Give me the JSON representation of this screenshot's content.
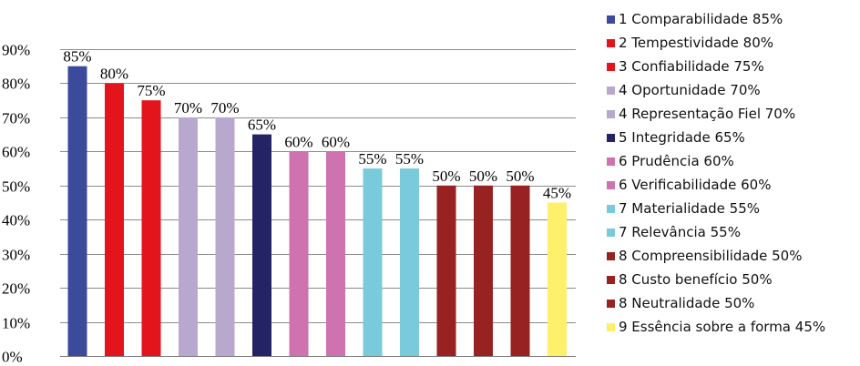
{
  "chart_data": {
    "type": "bar",
    "title": "",
    "xlabel": "",
    "ylabel": "",
    "ylim": [
      0,
      90
    ],
    "yticks": [
      "0%",
      "10%",
      "20%",
      "30%",
      "40%",
      "50%",
      "60%",
      "70%",
      "80%",
      "90%"
    ],
    "grid": true,
    "legend_position": "right",
    "categories": [
      "1 Comparabilidade 85%",
      "2 Tempestividade  80%",
      "3 Confiabilidade 75%",
      "4 Oportunidade 70%",
      "4 Representação Fiel 70%",
      "5 Integridade 65%",
      "6 Prudência 60%",
      "6 Verificabilidade 60%",
      "7 Materialidade 55%",
      "7 Relevância 55%",
      "8 Compreensibilidade 50%",
      "8 Custo benefício 50%",
      "8 Neutralidade 50%",
      "9 Essência sobre a forma 45%"
    ],
    "values": [
      85,
      80,
      75,
      70,
      70,
      65,
      60,
      60,
      55,
      55,
      50,
      50,
      50,
      45
    ],
    "data_labels": [
      "85%",
      "80%",
      "75%",
      "70%",
      "70%",
      "65%",
      "60%",
      "60%",
      "55%",
      "55%",
      "50%",
      "50%",
      "50%",
      "45%"
    ],
    "colors": [
      "#3c4a9c",
      "#e3141c",
      "#e3141c",
      "#b9a8ce",
      "#b9a8ce",
      "#232366",
      "#cf72b0",
      "#cf72b0",
      "#79cbdb",
      "#79cbdb",
      "#982222",
      "#982222",
      "#982222",
      "#fdf06a"
    ],
    "gridline_color": "#8c8c8c"
  }
}
